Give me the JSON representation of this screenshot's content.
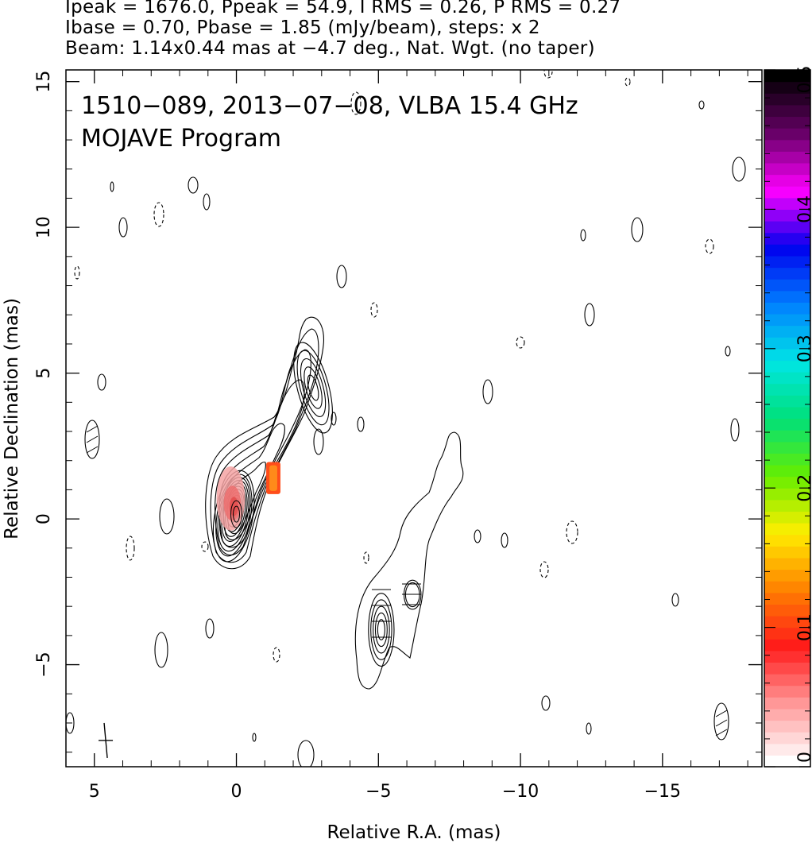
{
  "header": {
    "line1": "Ipeak = 1676.0, Ppeak = 54.9, I RMS = 0.26, P RMS = 0.27",
    "line2": "Ibase = 0.70, Pbase = 1.85 (mJy/beam), steps: x 2",
    "line3": "Beam: 1.14x0.44 mas at −4.7 deg., Nat. Wgt. (no taper)"
  },
  "panel": {
    "source_line": "1510−089, 2013−07−08, VLBA 15.4 GHz",
    "program_line": "MOJAVE Program"
  },
  "chart_data": {
    "type": "contour",
    "title": "1510−089, 2013−07−08, VLBA 15.4 GHz",
    "subtitle": "MOJAVE Program",
    "xlabel": "Relative R.A. (mas)",
    "ylabel": "Relative Declination (mas)",
    "xlim": [
      6.0,
      -18.5
    ],
    "ylim": [
      -8.5,
      15.4
    ],
    "x_ticks": [
      5,
      0,
      -5,
      -10,
      -15
    ],
    "x_tick_labels": [
      "5",
      "0",
      "−5",
      "−10",
      "−15"
    ],
    "y_ticks": [
      15,
      10,
      5,
      0,
      -5
    ],
    "y_tick_labels": [
      "15",
      "10",
      "5",
      "0",
      "−5"
    ],
    "colorbar": {
      "range": [
        0,
        0.5
      ],
      "ticks": [
        0,
        0.1,
        0.2,
        0.3,
        0.4,
        0.5
      ],
      "tick_labels": [
        "0",
        "0.1",
        "0.2",
        "0.3",
        "0.4",
        "0.5"
      ],
      "colors": [
        "#ffffff",
        "#ff9999",
        "#ff1a1a",
        "#ff8000",
        "#ffee00",
        "#66ee00",
        "#00e07a",
        "#00e5e5",
        "#0080ff",
        "#0000ee",
        "#ff00ff",
        "#660066",
        "#000000"
      ]
    },
    "core": {
      "x": 0.0,
      "y": 0.3
    },
    "contour_levels_mjy_per_beam": [
      -0.7,
      0.7,
      1.4,
      2.8,
      5.6,
      11.2,
      22.4,
      44.8,
      89.6,
      179.2,
      358.4,
      716.8,
      1433.6
    ],
    "jet_components": [
      {
        "x": -2.7,
        "y": 4.5,
        "rx": 0.55,
        "ry": 1.6,
        "rot": -15,
        "levels": 5
      },
      {
        "x": -5.1,
        "y": -3.8,
        "rx": 0.45,
        "ry": 1.25,
        "rot": 0,
        "levels": 5
      },
      {
        "x": -6.2,
        "y": -2.6,
        "rx": 0.3,
        "ry": 0.5,
        "rot": 0,
        "levels": 2
      }
    ],
    "polarization_patches": [
      {
        "x": 0.2,
        "y": 0.7,
        "rx": 0.5,
        "ry": 1.1,
        "value": 0.11
      },
      {
        "x": -1.3,
        "y": 1.4,
        "rx": 0.25,
        "ry": 0.55,
        "value": 0.13
      }
    ],
    "beam": {
      "x": 4.6,
      "y": -7.6,
      "major_mas": 1.14,
      "minor_mas": 0.44,
      "pa_deg": -4.7
    }
  }
}
